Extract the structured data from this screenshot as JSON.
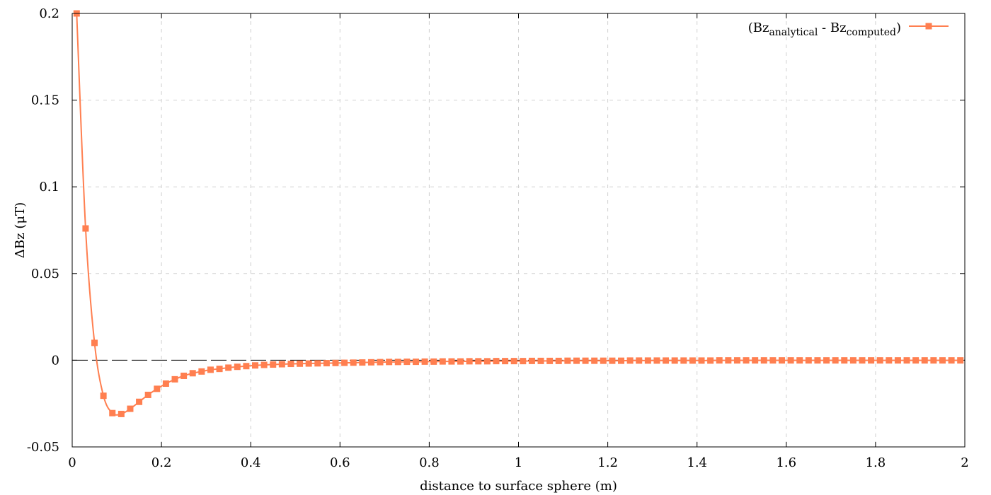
{
  "chart_data": {
    "type": "line",
    "title": "",
    "xlabel": "distance to surface sphere (m)",
    "ylabel": "ΔBz (μT)",
    "xlim": [
      0,
      2
    ],
    "ylim": [
      -0.05,
      0.2
    ],
    "xticks": [
      "0",
      "0.2",
      "0.4",
      "0.6",
      "0.8",
      "1",
      "1.2",
      "1.4",
      "1.6",
      "1.8",
      "2"
    ],
    "yticks": [
      "-0.05",
      "0",
      "0.05",
      "0.1",
      "0.15",
      "0.2"
    ],
    "grid": true,
    "zero_line": true,
    "legend": {
      "position": "top-right",
      "entry": {
        "prefix": "(Bz",
        "sub1": "analytical",
        "middle": " - Bz",
        "sub2": "computed",
        "suffix": ")"
      }
    },
    "series": [
      {
        "name": "(Bzanalytical - Bzcomputed)",
        "color": "#ff7f50",
        "marker": "square",
        "x": [
          0.01,
          0.03,
          0.05,
          0.07,
          0.09,
          0.11,
          0.13,
          0.15,
          0.17,
          0.19,
          0.21,
          0.23,
          0.25,
          0.27,
          0.29,
          0.31,
          0.33,
          0.35,
          0.37,
          0.39,
          0.41,
          0.43,
          0.45,
          0.47,
          0.49,
          0.51,
          0.53,
          0.55,
          0.57,
          0.59,
          0.61,
          0.63,
          0.65,
          0.67,
          0.69,
          0.71,
          0.73,
          0.75,
          0.77,
          0.79,
          0.81,
          0.83,
          0.85,
          0.87,
          0.89,
          0.91,
          0.93,
          0.95,
          0.97,
          0.99,
          1.01,
          1.03,
          1.05,
          1.07,
          1.09,
          1.11,
          1.13,
          1.15,
          1.17,
          1.19,
          1.21,
          1.23,
          1.25,
          1.27,
          1.29,
          1.31,
          1.33,
          1.35,
          1.37,
          1.39,
          1.41,
          1.43,
          1.45,
          1.47,
          1.49,
          1.51,
          1.53,
          1.55,
          1.57,
          1.59,
          1.61,
          1.63,
          1.65,
          1.67,
          1.69,
          1.71,
          1.73,
          1.75,
          1.77,
          1.79,
          1.81,
          1.83,
          1.85,
          1.87,
          1.89,
          1.91,
          1.93,
          1.95,
          1.97,
          1.99
        ],
        "y": [
          0.2,
          0.076,
          0.01,
          -0.0205,
          -0.0305,
          -0.031,
          -0.028,
          -0.024,
          -0.02,
          -0.0165,
          -0.0135,
          -0.011,
          -0.009,
          -0.0075,
          -0.0065,
          -0.0055,
          -0.005,
          -0.0043,
          -0.0038,
          -0.0034,
          -0.003,
          -0.0027,
          -0.0025,
          -0.0023,
          -0.0021,
          -0.002,
          -0.0019,
          -0.0018,
          -0.0017,
          -0.0016,
          -0.0015,
          -0.0014,
          -0.0013,
          -0.0012,
          -0.0011,
          -0.001,
          -0.001,
          -0.0009,
          -0.0009,
          -0.0008,
          -0.0008,
          -0.0007,
          -0.0007,
          -0.0007,
          -0.0006,
          -0.0006,
          -0.0006,
          -0.0005,
          -0.0005,
          -0.0005,
          -0.0005,
          -0.0004,
          -0.0004,
          -0.0004,
          -0.0004,
          -0.0003,
          -0.0003,
          -0.0003,
          -0.0003,
          -0.0003,
          -0.0003,
          -0.0003,
          -0.0002,
          -0.0002,
          -0.0002,
          -0.0002,
          -0.0002,
          -0.0002,
          -0.0002,
          -0.0002,
          -0.0002,
          -0.0002,
          -0.0001,
          -0.0001,
          -0.0001,
          -0.0001,
          -0.0001,
          -0.0001,
          -0.0001,
          -0.0001,
          -0.0001,
          -0.0001,
          -0.0001,
          -0.0001,
          -0.0001,
          -0.0001,
          -0.0001,
          -0.0001,
          -0.0001,
          -0.0001,
          -0.0001,
          -0.0001,
          -0.0001,
          -0.0001,
          -0.0001,
          -0.0001,
          -0.0001,
          -0.0001,
          -0.0001,
          -0.0001
        ]
      }
    ]
  }
}
